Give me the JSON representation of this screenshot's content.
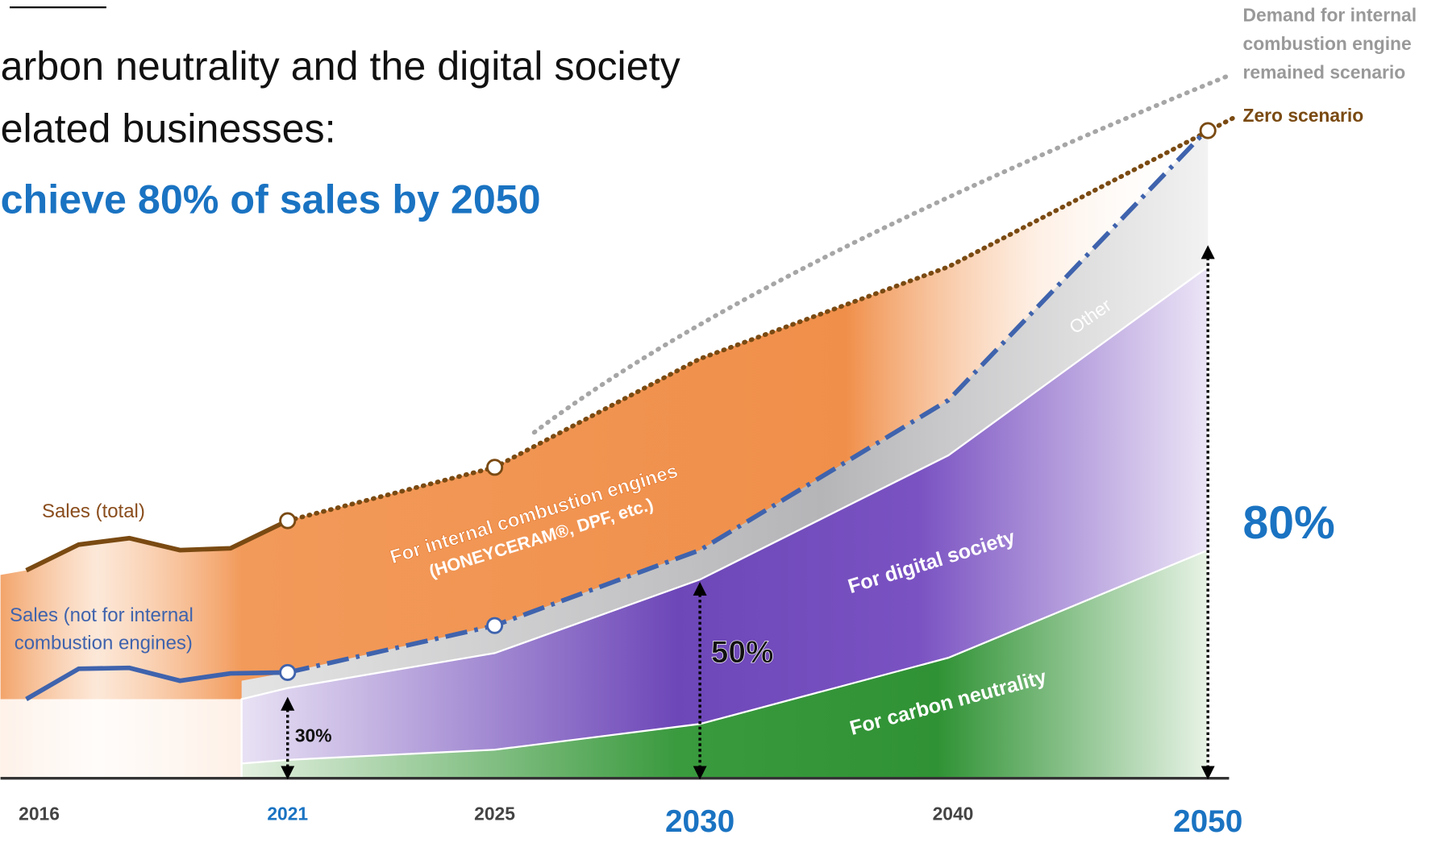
{
  "header": {
    "title_lines": [
      "arbon neutrality and the digital society",
      "elated businesses:"
    ],
    "headline": "chieve 80% of sales by 2050"
  },
  "legend": {
    "demand_lines": [
      "Demand for internal",
      "combustion engine",
      "remained scenario"
    ],
    "zero": "Zero scenario"
  },
  "series_labels": {
    "total": "Sales (total)",
    "non_ice": [
      "Sales (not for internal",
      "combustion engines)"
    ]
  },
  "areas": {
    "ice": [
      "For internal combustion engines",
      "(HONEYCERAM®, DPF, etc.)"
    ],
    "digital": "For digital society",
    "carbon": "For carbon neutrality",
    "other": "Other"
  },
  "shares": {
    "y2021": "30%",
    "y2030": "50%",
    "y2050": "80%"
  },
  "years": [
    "2016",
    "2021",
    "2025",
    "2030",
    "2040",
    "2050"
  ]
}
